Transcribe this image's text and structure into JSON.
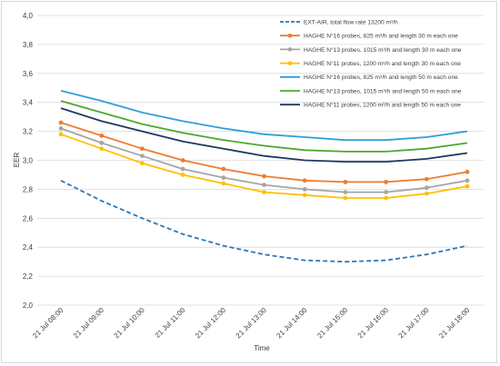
{
  "chart_data": {
    "type": "line",
    "xlabel": "Time",
    "ylabel": "EER",
    "ylim": [
      2.0,
      4.0
    ],
    "yticks": [
      "2,0",
      "2,2",
      "2,4",
      "2,6",
      "2,8",
      "3,0",
      "3,2",
      "3,4",
      "3,6",
      "3,8",
      "4,0"
    ],
    "grid": "horizontal",
    "legend_position": "top-right",
    "categories": [
      "21 Jul 08:00",
      "21 Jul 09:00",
      "21 Jul 10:00",
      "21 Jul 11:00",
      "21 Jul 12:00",
      "21 Jul 13:00",
      "21 Jul 14:00",
      "21 Jul 15:00",
      "21 Jul 16:00",
      "21 Jul 17:00",
      "21 Jul 18:00"
    ],
    "series": [
      {
        "name": "EXT-AIR, total flow rate 13200 m³/h",
        "color": "#2e75b6",
        "dashed": true,
        "markers": false,
        "values": [
          2.86,
          2.72,
          2.6,
          2.49,
          2.41,
          2.35,
          2.31,
          2.3,
          2.31,
          2.35,
          2.41
        ]
      },
      {
        "name": "HAGHE N°16 probes, 825 m³/h and length 30 m each one",
        "color": "#ed7d31",
        "dashed": false,
        "markers": true,
        "values": [
          3.26,
          3.17,
          3.08,
          3.0,
          2.94,
          2.89,
          2.86,
          2.85,
          2.85,
          2.87,
          2.92
        ]
      },
      {
        "name": "HAGHE N°13 probes, 1015 m³/h and length 30 m each one",
        "color": "#a5a5a5",
        "dashed": false,
        "markers": true,
        "values": [
          3.22,
          3.12,
          3.03,
          2.94,
          2.88,
          2.83,
          2.8,
          2.78,
          2.78,
          2.81,
          2.86
        ]
      },
      {
        "name": "HAGHE N°11 probes, 1200 m³/h and length 30 m each one",
        "color": "#ffc000",
        "dashed": false,
        "markers": true,
        "values": [
          3.18,
          3.08,
          2.98,
          2.9,
          2.84,
          2.78,
          2.76,
          2.74,
          2.74,
          2.77,
          2.82
        ]
      },
      {
        "name": "HAGHE N°16 probes, 825 m³/h and length 50 m each one",
        "color": "#2e9fd8",
        "dashed": false,
        "markers": false,
        "values": [
          3.48,
          3.41,
          3.33,
          3.27,
          3.22,
          3.18,
          3.16,
          3.14,
          3.14,
          3.16,
          3.2
        ]
      },
      {
        "name": "HAGHE N°13 probes, 1015 m³/h and length 50 m each one",
        "color": "#4ea72e",
        "dashed": false,
        "markers": false,
        "values": [
          3.41,
          3.33,
          3.25,
          3.19,
          3.14,
          3.1,
          3.07,
          3.06,
          3.06,
          3.08,
          3.12
        ]
      },
      {
        "name": "HAGHE N°11 probes, 1200 m³/h and length 50 m each one",
        "color": "#1f3864",
        "dashed": false,
        "markers": false,
        "values": [
          3.36,
          3.27,
          3.2,
          3.13,
          3.08,
          3.03,
          3.0,
          2.99,
          2.99,
          3.01,
          3.05
        ]
      }
    ]
  }
}
